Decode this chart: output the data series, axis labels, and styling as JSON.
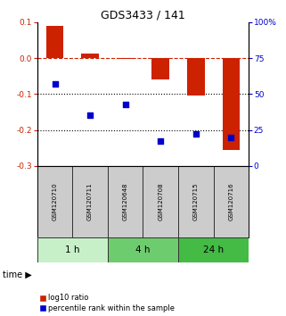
{
  "title": "GDS3433 / 141",
  "samples": [
    "GSM120710",
    "GSM120711",
    "GSM120648",
    "GSM120708",
    "GSM120715",
    "GSM120716"
  ],
  "log10_ratio": [
    0.09,
    0.012,
    -0.003,
    -0.06,
    -0.105,
    -0.255
  ],
  "percentile_rank": [
    57,
    35,
    43,
    17,
    22,
    20
  ],
  "time_groups": [
    {
      "label": "1 h",
      "start": 0,
      "end": 1,
      "color": "#c8f0c8"
    },
    {
      "label": "4 h",
      "start": 2,
      "end": 3,
      "color": "#6dcc6d"
    },
    {
      "label": "24 h",
      "start": 4,
      "end": 5,
      "color": "#44bb44"
    }
  ],
  "bar_color": "#cc2200",
  "dot_color": "#0000cc",
  "ylim_left": [
    -0.3,
    0.1
  ],
  "ylim_right": [
    0,
    100
  ],
  "yticks_left": [
    0.1,
    0.0,
    -0.1,
    -0.2,
    -0.3
  ],
  "yticks_right": [
    100,
    75,
    50,
    25,
    0
  ],
  "legend_labels": [
    "log10 ratio",
    "percentile rank within the sample"
  ],
  "background_color": "#ffffff",
  "bar_width": 0.5,
  "sample_box_color": "#cccccc",
  "sample_box_edge": "#333333"
}
